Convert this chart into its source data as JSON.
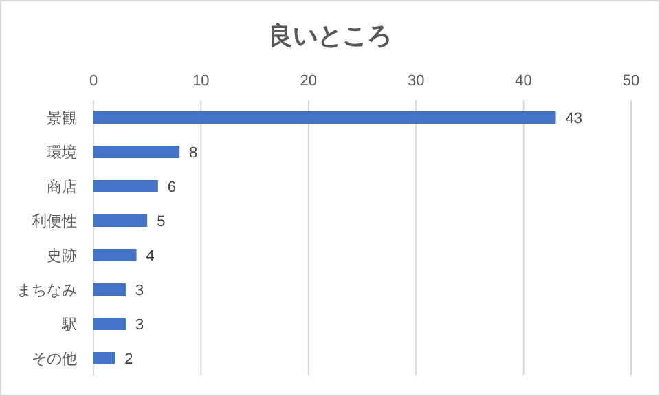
{
  "chart_data": {
    "type": "bar",
    "orientation": "horizontal",
    "title": "良いところ",
    "categories": [
      "景観",
      "環境",
      "商店",
      "利便性",
      "史跡",
      "まちなみ",
      "駅",
      "その他"
    ],
    "values": [
      43,
      8,
      6,
      5,
      4,
      3,
      3,
      2
    ],
    "color": "#4472c4",
    "xlim": [
      0,
      50
    ],
    "xticks": [
      0,
      10,
      20,
      30,
      40,
      50
    ],
    "grid": "x",
    "data_labels": true
  }
}
